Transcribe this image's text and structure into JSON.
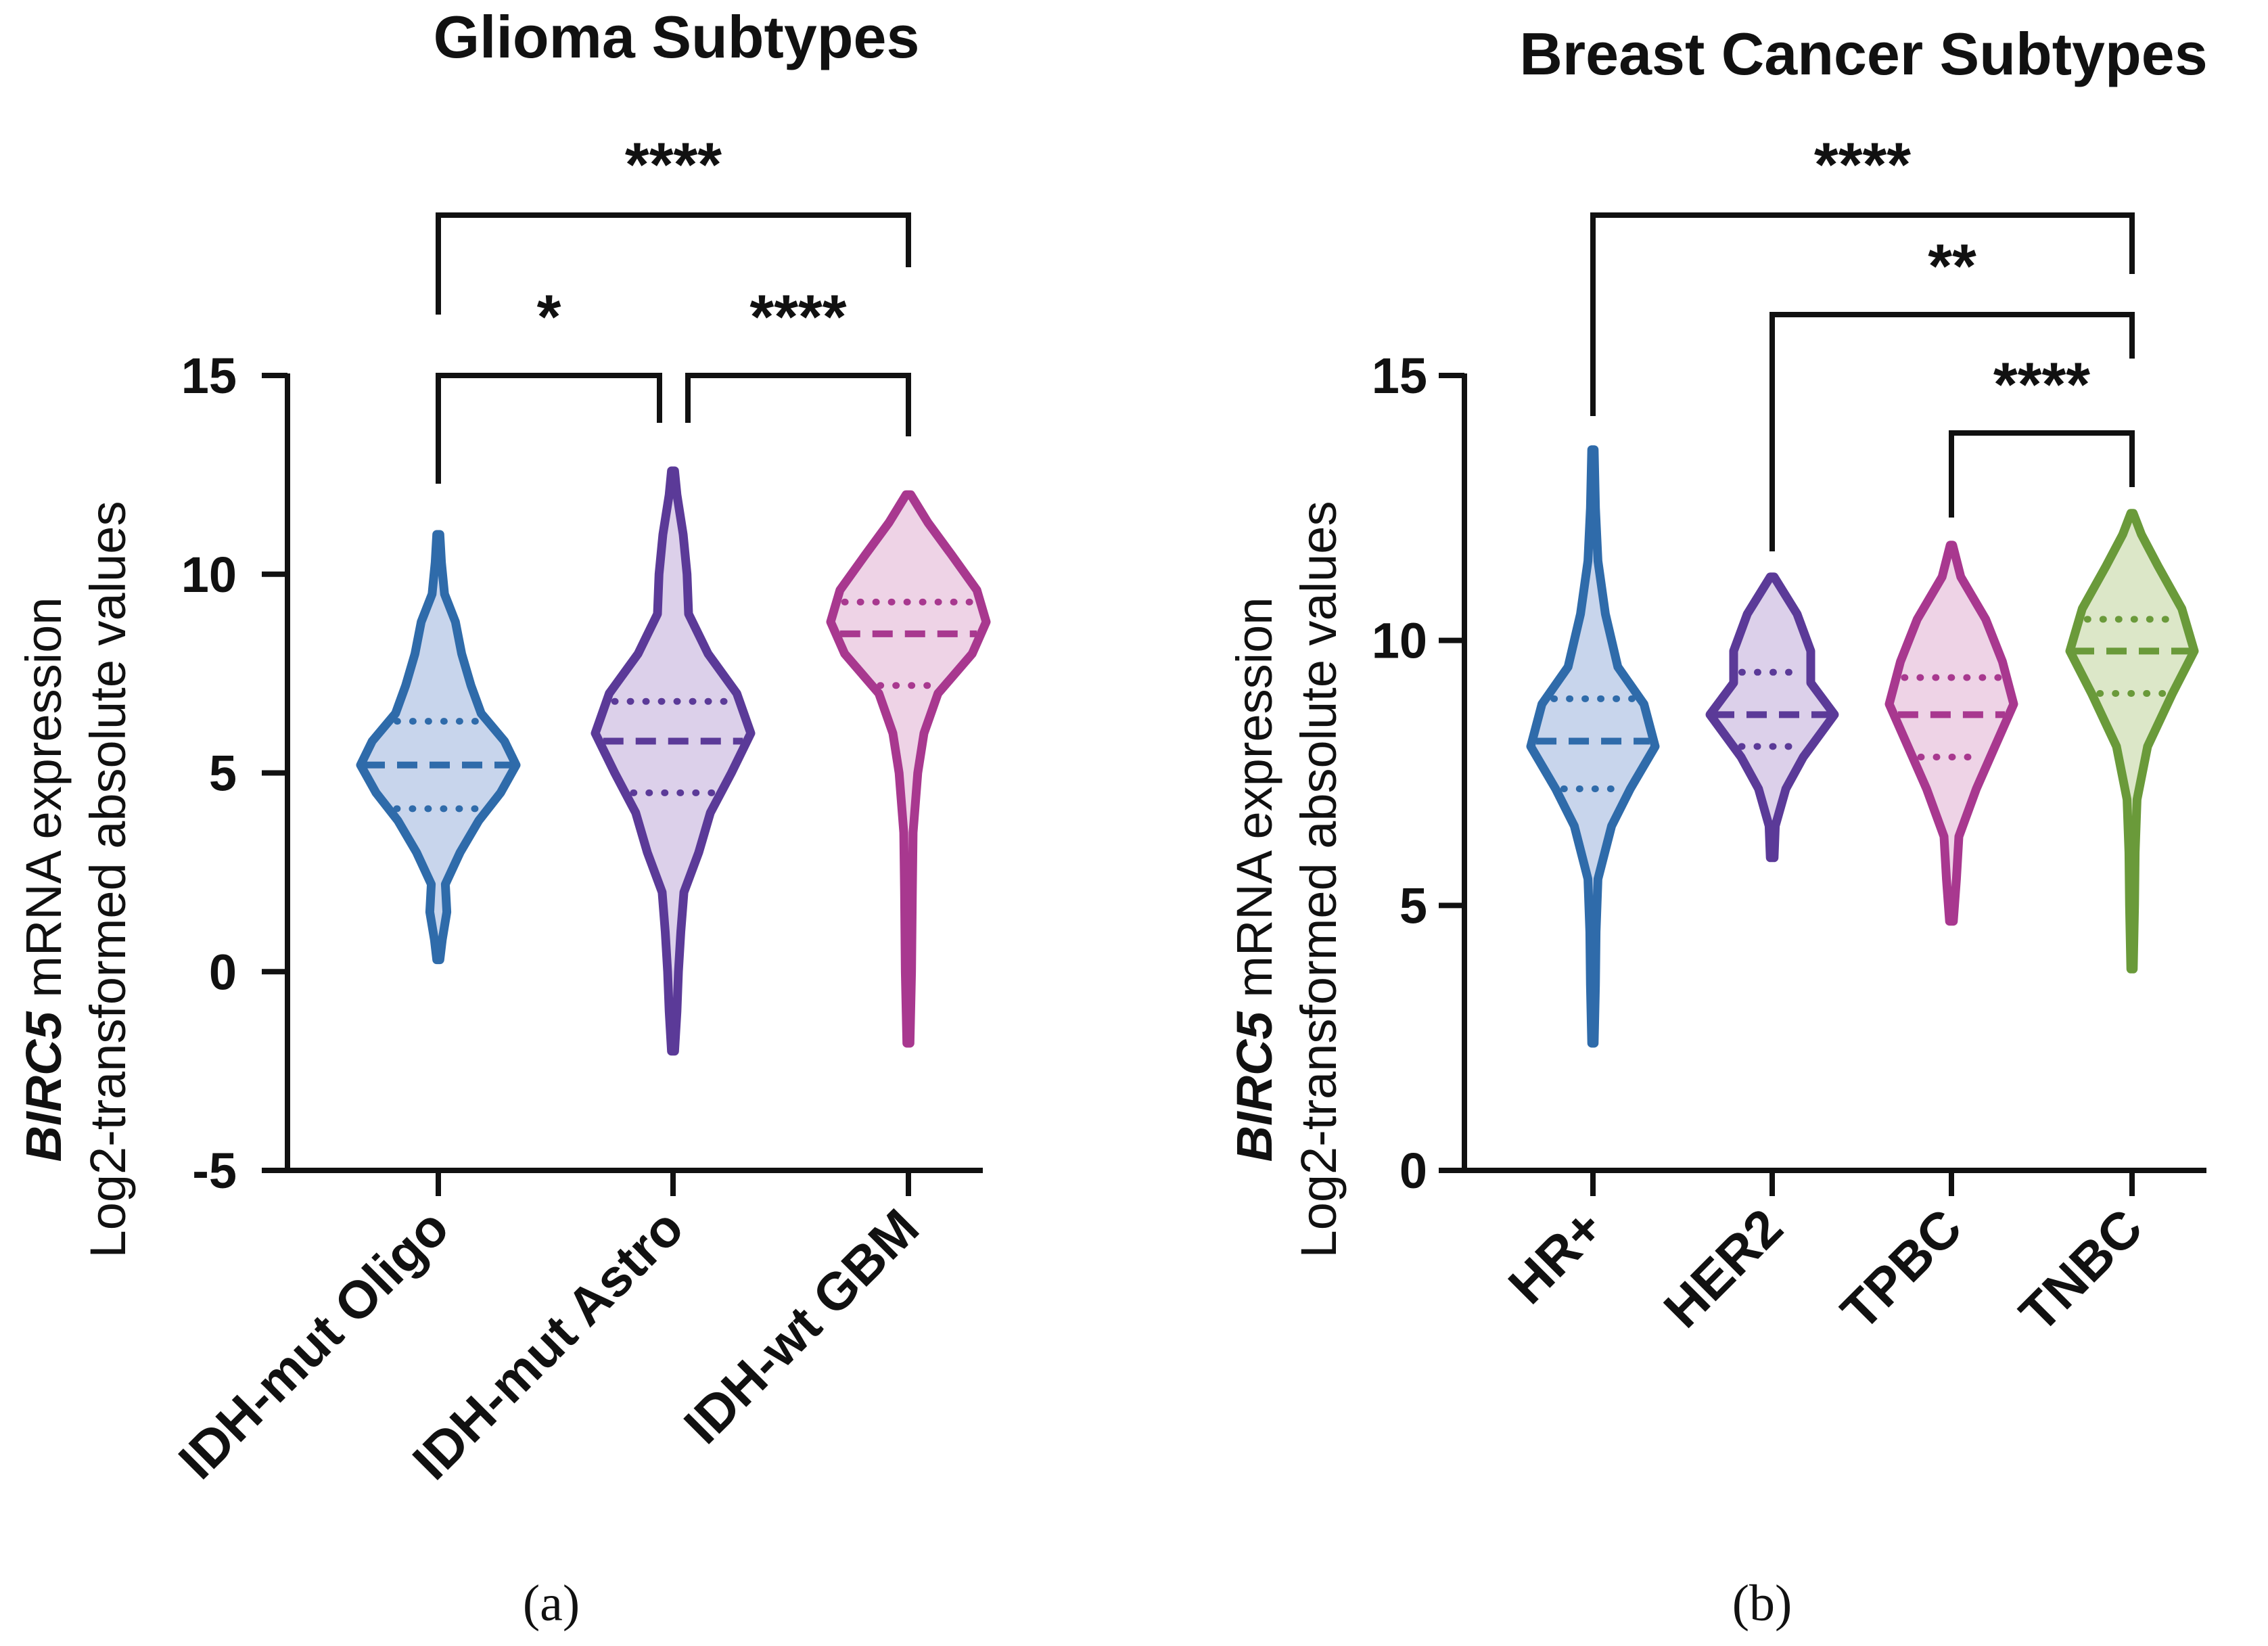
{
  "chart_data": [
    {
      "panel": "(a)",
      "type": "violin",
      "title": "Glioma Subtypes",
      "ylabel_gene": "BIRC5",
      "ylabel_rest": " mRNA expression",
      "ylabel_line2": "Log2-transformed absolute values",
      "ylim": [
        -5,
        15
      ],
      "yticks": [
        -5,
        0,
        5,
        10,
        15
      ],
      "groups": [
        {
          "name": "IDH-mut Oligo",
          "color": "#2F6BAA",
          "fill": "#C8D5EC",
          "median": 5.2,
          "q1": 4.1,
          "q3": 6.3,
          "min": 0.3,
          "max": 11.0,
          "profile": [
            [
              0.3,
              0.02
            ],
            [
              0.8,
              0.05
            ],
            [
              1.5,
              0.11
            ],
            [
              2.2,
              0.09
            ],
            [
              3.0,
              0.28
            ],
            [
              3.8,
              0.52
            ],
            [
              4.5,
              0.8
            ],
            [
              5.2,
              1.0
            ],
            [
              5.8,
              0.85
            ],
            [
              6.5,
              0.55
            ],
            [
              7.2,
              0.42
            ],
            [
              8.0,
              0.3
            ],
            [
              8.8,
              0.22
            ],
            [
              9.5,
              0.08
            ],
            [
              10.3,
              0.04
            ],
            [
              11.0,
              0.02
            ]
          ]
        },
        {
          "name": "IDH-mut Astro",
          "color": "#5B3A98",
          "fill": "#DCD0EA",
          "median": 5.8,
          "q1": 4.5,
          "q3": 6.8,
          "min": -2.0,
          "max": 12.6,
          "profile": [
            [
              -2.0,
              0.02
            ],
            [
              -1.0,
              0.05
            ],
            [
              0.0,
              0.07
            ],
            [
              1.0,
              0.1
            ],
            [
              2.0,
              0.14
            ],
            [
              3.0,
              0.33
            ],
            [
              4.0,
              0.48
            ],
            [
              5.0,
              0.75
            ],
            [
              6.0,
              1.0
            ],
            [
              7.0,
              0.82
            ],
            [
              8.0,
              0.45
            ],
            [
              9.0,
              0.2
            ],
            [
              10.0,
              0.18
            ],
            [
              11.0,
              0.13
            ],
            [
              12.0,
              0.05
            ],
            [
              12.6,
              0.02
            ]
          ]
        },
        {
          "name": "IDH-wt GBM",
          "color": "#A8388F",
          "fill": "#EED3E6",
          "median": 8.5,
          "q1": 7.2,
          "q3": 9.3,
          "min": -1.8,
          "max": 12.0,
          "profile": [
            [
              -1.8,
              0.02
            ],
            [
              0.0,
              0.04
            ],
            [
              2.0,
              0.05
            ],
            [
              3.5,
              0.06
            ],
            [
              5.0,
              0.12
            ],
            [
              6.0,
              0.2
            ],
            [
              7.0,
              0.38
            ],
            [
              8.0,
              0.82
            ],
            [
              8.8,
              1.0
            ],
            [
              9.6,
              0.88
            ],
            [
              10.5,
              0.55
            ],
            [
              11.3,
              0.25
            ],
            [
              12.0,
              0.03
            ]
          ]
        }
      ],
      "significance": [
        {
          "from": 0,
          "to": 2,
          "label": "****"
        },
        {
          "from": 0,
          "to": 1,
          "label": "*"
        },
        {
          "from": 1,
          "to": 2,
          "label": "****"
        }
      ]
    },
    {
      "panel": "(b)",
      "type": "violin",
      "title": "Breast Cancer Subtypes",
      "ylabel_gene": "BIRC5",
      "ylabel_rest": " mRNA expression",
      "ylabel_line2": "Log2-transformed absolute values",
      "ylim": [
        0,
        15
      ],
      "yticks": [
        0,
        5,
        10,
        15
      ],
      "groups": [
        {
          "name": "HR+",
          "color": "#2F6BAA",
          "fill": "#C8D5EC",
          "median": 8.1,
          "q1": 7.2,
          "q3": 8.9,
          "min": 2.4,
          "max": 13.6,
          "profile": [
            [
              2.4,
              0.02
            ],
            [
              3.5,
              0.04
            ],
            [
              4.5,
              0.05
            ],
            [
              5.5,
              0.08
            ],
            [
              6.5,
              0.3
            ],
            [
              7.2,
              0.6
            ],
            [
              8.0,
              1.0
            ],
            [
              8.8,
              0.82
            ],
            [
              9.5,
              0.4
            ],
            [
              10.5,
              0.2
            ],
            [
              11.5,
              0.08
            ],
            [
              12.5,
              0.04
            ],
            [
              13.6,
              0.02
            ]
          ]
        },
        {
          "name": "HER2",
          "color": "#5B3A98",
          "fill": "#DCD0EA",
          "median": 8.6,
          "q1": 8.0,
          "q3": 9.4,
          "min": 5.9,
          "max": 11.2,
          "profile": [
            [
              5.9,
              0.03
            ],
            [
              6.5,
              0.05
            ],
            [
              7.2,
              0.22
            ],
            [
              7.8,
              0.5
            ],
            [
              8.6,
              1.0
            ],
            [
              9.2,
              0.62
            ],
            [
              9.8,
              0.62
            ],
            [
              10.5,
              0.4
            ],
            [
              11.2,
              0.03
            ]
          ]
        },
        {
          "name": "TPBC",
          "color": "#A8388F",
          "fill": "#EED3E6",
          "median": 8.6,
          "q1": 7.8,
          "q3": 9.3,
          "min": 4.7,
          "max": 11.8,
          "profile": [
            [
              4.7,
              0.03
            ],
            [
              5.5,
              0.08
            ],
            [
              6.3,
              0.12
            ],
            [
              7.2,
              0.4
            ],
            [
              8.0,
              0.7
            ],
            [
              8.8,
              1.0
            ],
            [
              9.6,
              0.82
            ],
            [
              10.4,
              0.55
            ],
            [
              11.2,
              0.15
            ],
            [
              11.8,
              0.02
            ]
          ]
        },
        {
          "name": "TNBC",
          "color": "#6A9A3A",
          "fill": "#DCE7C8",
          "median": 9.8,
          "q1": 9.0,
          "q3": 10.4,
          "min": 3.8,
          "max": 12.4,
          "profile": [
            [
              3.8,
              0.02
            ],
            [
              5.0,
              0.04
            ],
            [
              6.0,
              0.05
            ],
            [
              7.0,
              0.08
            ],
            [
              8.0,
              0.25
            ],
            [
              9.0,
              0.65
            ],
            [
              9.8,
              1.0
            ],
            [
              10.6,
              0.8
            ],
            [
              11.4,
              0.42
            ],
            [
              12.0,
              0.15
            ],
            [
              12.4,
              0.02
            ]
          ]
        }
      ],
      "significance": [
        {
          "from": 0,
          "to": 3,
          "label": "****"
        },
        {
          "from": 1,
          "to": 3,
          "label": "**"
        },
        {
          "from": 2,
          "to": 3,
          "label": "****"
        }
      ]
    }
  ]
}
